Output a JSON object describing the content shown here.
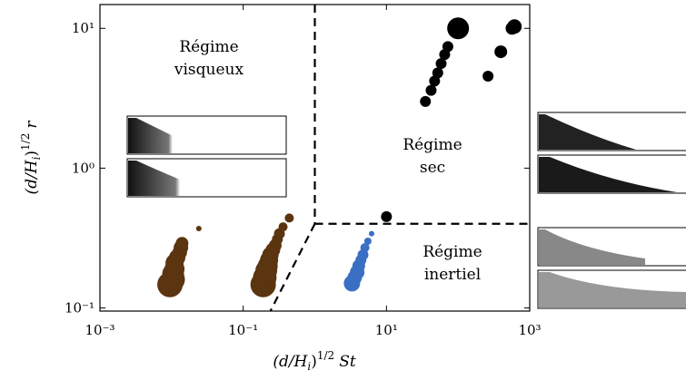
{
  "chart_data": {
    "type": "scatter",
    "x_label": {
      "prefix": "(d/H",
      "subscript": "i",
      "close": ")",
      "exponent": "1/2",
      "variable": "St"
    },
    "y_label": {
      "prefix": "(d/H",
      "subscript": "i",
      "close": ")",
      "exponent": "1/2",
      "variable": "r"
    },
    "log_x": true,
    "log_y": true,
    "xlim": [
      0.001,
      1000
    ],
    "ylim": [
      0.095,
      14.8
    ],
    "xticks": [
      {
        "value": 0.001,
        "label": "10⁻³"
      },
      {
        "value": 0.1,
        "label": "10⁻¹"
      },
      {
        "value": 10,
        "label": "10¹"
      },
      {
        "value": 1000,
        "label": "10³"
      }
    ],
    "yticks": [
      {
        "value": 0.1,
        "label": "10⁻¹"
      },
      {
        "value": 1,
        "label": "10⁰"
      },
      {
        "value": 10,
        "label": "10¹"
      }
    ],
    "annotations": [
      {
        "lines": [
          "Régime",
          "visqueux"
        ]
      },
      {
        "lines": [
          "Régime",
          "sec"
        ]
      },
      {
        "lines": [
          "Régime",
          "inertiel"
        ]
      }
    ],
    "boundaries": [
      {
        "x": [
          1,
          1
        ],
        "y": [
          14.8,
          0.4
        ]
      },
      {
        "x": [
          1,
          1000
        ],
        "y": [
          0.4,
          0.4
        ]
      },
      {
        "x": [
          1,
          0.24
        ],
        "y": [
          0.4,
          0.095
        ]
      }
    ],
    "series": [
      {
        "color": "#5b3410",
        "x": [
          0.0095,
          0.0105,
          0.0105,
          0.011,
          0.011,
          0.012,
          0.013,
          0.0135,
          0.014,
          0.024
        ],
        "y": [
          0.147,
          0.16,
          0.175,
          0.19,
          0.21,
          0.23,
          0.25,
          0.27,
          0.29,
          0.37
        ],
        "sizes": [
          14,
          13,
          12,
          11,
          10,
          9,
          8,
          8,
          7,
          3
        ]
      },
      {
        "color": "#5b3410",
        "x": [
          0.19,
          0.2,
          0.21,
          0.22,
          0.23,
          0.24,
          0.26,
          0.28,
          0.3,
          0.32,
          0.36,
          0.44
        ],
        "y": [
          0.147,
          0.165,
          0.185,
          0.2,
          0.22,
          0.24,
          0.26,
          0.28,
          0.31,
          0.34,
          0.38,
          0.44
        ],
        "sizes": [
          14,
          13,
          12,
          11,
          10,
          9,
          8,
          7,
          6,
          6,
          5,
          5
        ]
      },
      {
        "color": "#3a6fc4",
        "x": [
          3.3,
          3.6,
          3.9,
          4.1,
          4.4,
          4.7,
          5.0,
          5.5,
          6.2
        ],
        "y": [
          0.15,
          0.165,
          0.18,
          0.2,
          0.22,
          0.24,
          0.27,
          0.3,
          0.34
        ],
        "sizes": [
          9,
          8,
          8,
          7,
          6,
          6,
          5,
          4,
          3
        ]
      },
      {
        "color": "#000000",
        "x": [
          10,
          35,
          42,
          47,
          52,
          58,
          65,
          72,
          100,
          262,
          395,
          612,
          565
        ],
        "y": [
          0.45,
          3.0,
          3.6,
          4.2,
          4.8,
          5.6,
          6.5,
          7.4,
          10,
          4.55,
          6.8,
          10.3,
          10
        ],
        "sizes": [
          6,
          6,
          6,
          6,
          6,
          6,
          6,
          6,
          12,
          6,
          7,
          8,
          7
        ]
      }
    ]
  }
}
